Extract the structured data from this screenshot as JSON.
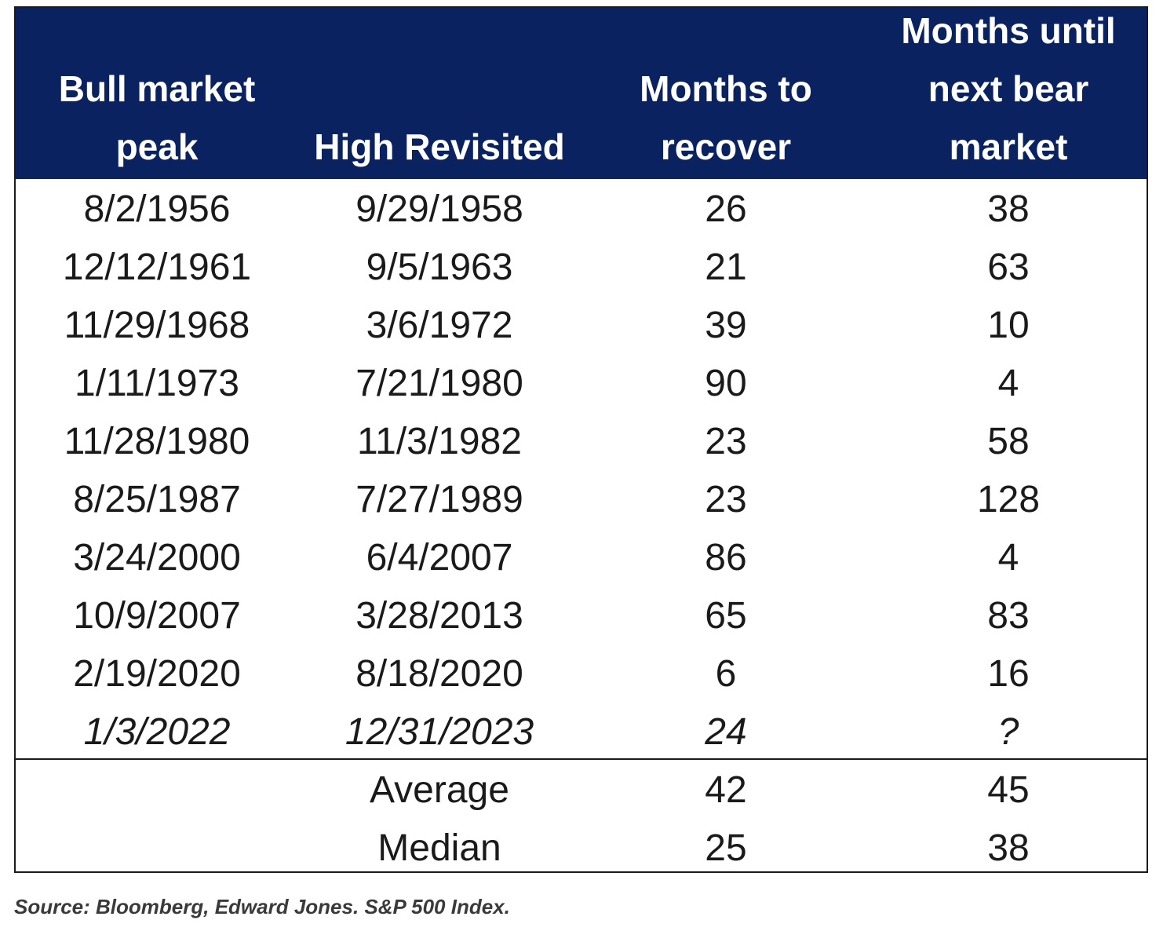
{
  "chart_data": {
    "type": "table",
    "columns": [
      "Bull market\npeak",
      "High Revisited",
      "Months to\nrecover",
      "Months until\nnext bear\nmarket"
    ],
    "rows": [
      {
        "peak": "8/2/1956",
        "revisited": "9/29/1958",
        "recover": "26",
        "next_bear": "38",
        "italic": false
      },
      {
        "peak": "12/12/1961",
        "revisited": "9/5/1963",
        "recover": "21",
        "next_bear": "63",
        "italic": false
      },
      {
        "peak": "11/29/1968",
        "revisited": "3/6/1972",
        "recover": "39",
        "next_bear": "10",
        "italic": false
      },
      {
        "peak": "1/11/1973",
        "revisited": "7/21/1980",
        "recover": "90",
        "next_bear": "4",
        "italic": false
      },
      {
        "peak": "11/28/1980",
        "revisited": "11/3/1982",
        "recover": "23",
        "next_bear": "58",
        "italic": false
      },
      {
        "peak": "8/25/1987",
        "revisited": "7/27/1989",
        "recover": "23",
        "next_bear": "128",
        "italic": false
      },
      {
        "peak": "3/24/2000",
        "revisited": "6/4/2007",
        "recover": "86",
        "next_bear": "4",
        "italic": false
      },
      {
        "peak": "10/9/2007",
        "revisited": "3/28/2013",
        "recover": "65",
        "next_bear": "83",
        "italic": false
      },
      {
        "peak": "2/19/2020",
        "revisited": "8/18/2020",
        "recover": "6",
        "next_bear": "16",
        "italic": false
      },
      {
        "peak": "1/3/2022",
        "revisited": "12/31/2023",
        "recover": "24",
        "next_bear": "?",
        "italic": true
      }
    ],
    "summary": [
      {
        "label": "Average",
        "recover": "42",
        "next_bear": "45"
      },
      {
        "label": "Median",
        "recover": "25",
        "next_bear": "38"
      }
    ]
  },
  "source": "Source: Bloomberg, Edward Jones. S&P 500 Index.",
  "colors": {
    "header_bg": "#0b2260",
    "header_text": "#ffffff",
    "body_text": "#1a1a1a",
    "border": "#1b1b1b"
  }
}
